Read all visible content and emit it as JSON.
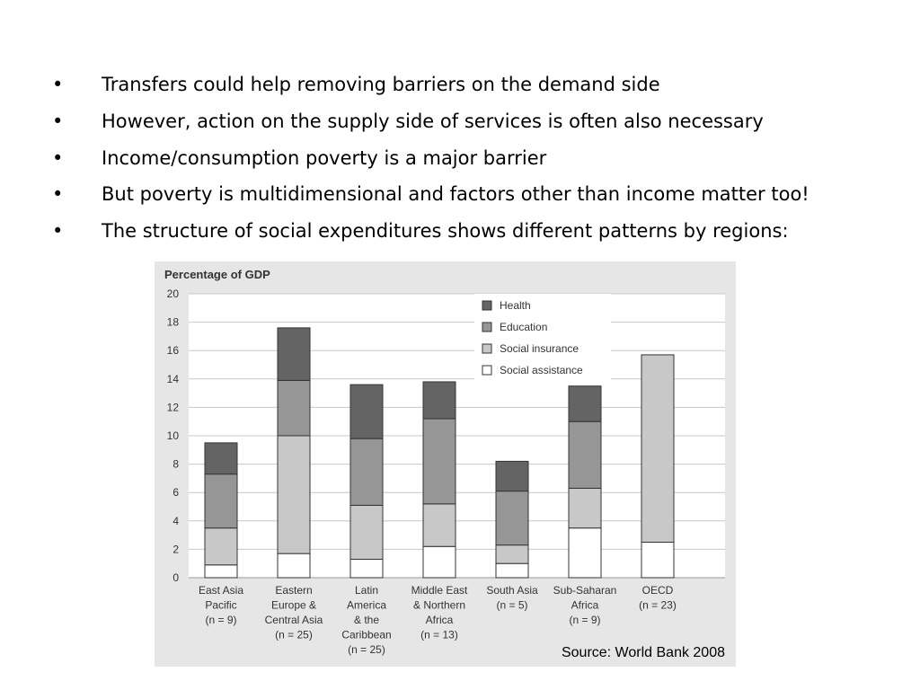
{
  "bullets": [
    "Transfers could help removing barriers on the demand side",
    "However, action on the supply side of services is often also necessary",
    "Income/consumption poverty is a major barrier",
    "But poverty is multidimensional and factors other than income matter too!",
    "The structure of social expenditures shows different patterns by regions:"
  ],
  "bullet_glyph": "•",
  "source": "Source: World Bank 2008",
  "chart_data": {
    "type": "bar",
    "stacked": true,
    "title": "Percentage of GDP",
    "ylim": [
      0,
      20
    ],
    "yticks": [
      0,
      2,
      4,
      6,
      8,
      10,
      12,
      14,
      16,
      18,
      20
    ],
    "grid": true,
    "legend_position": "top-right",
    "categories": [
      [
        "East Asia",
        "Pacific",
        "(n = 9)"
      ],
      [
        "Eastern",
        "Europe &",
        "Central Asia",
        "(n = 25)"
      ],
      [
        "Latin",
        "America",
        "& the",
        "Caribbean",
        "(n = 25)"
      ],
      [
        "Middle East",
        "& Northern",
        "Africa",
        "(n = 13)"
      ],
      [
        "South Asia",
        "(n = 5)"
      ],
      [
        "Sub-Saharan",
        "Africa",
        "(n = 9)"
      ],
      [
        "OECD",
        "(n = 23)"
      ]
    ],
    "series": [
      {
        "name": "Social assistance",
        "color": "#ffffff",
        "values": [
          0.9,
          1.7,
          1.3,
          2.2,
          1.0,
          3.5,
          2.5
        ]
      },
      {
        "name": "Social insurance",
        "color": "#c8c8c8",
        "values": [
          2.6,
          8.3,
          3.8,
          3.0,
          1.3,
          2.8,
          13.2
        ]
      },
      {
        "name": "Education",
        "color": "#969696",
        "values": [
          3.8,
          3.9,
          4.7,
          6.0,
          3.8,
          4.7,
          0
        ]
      },
      {
        "name": "Health",
        "color": "#646464",
        "values": [
          2.2,
          3.7,
          3.8,
          2.6,
          2.1,
          2.5,
          0
        ]
      }
    ]
  }
}
